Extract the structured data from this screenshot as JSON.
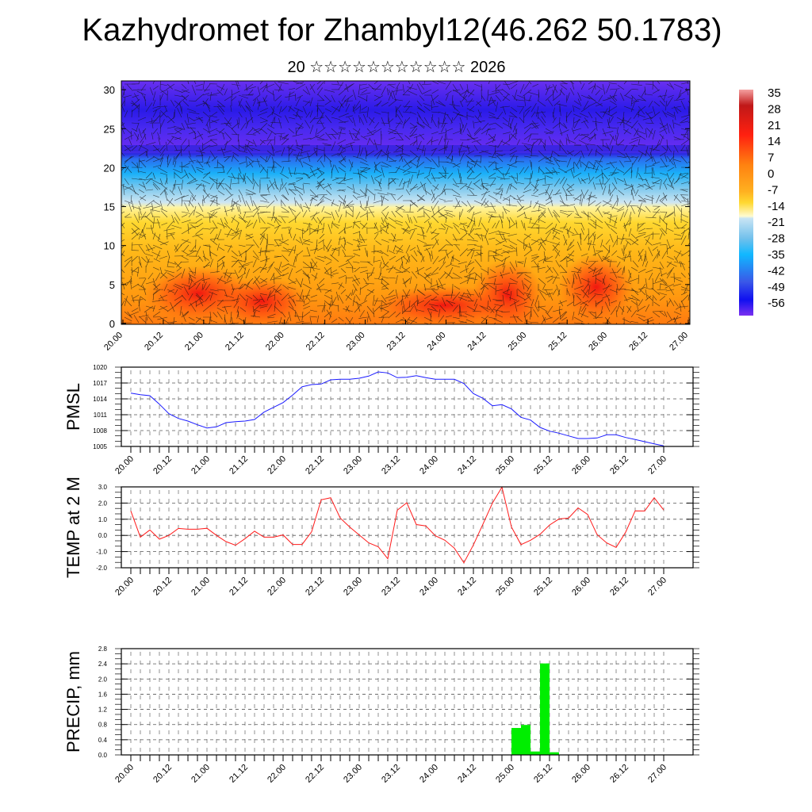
{
  "title": "Kazhydromet for Zhambyl12(46.262 50.1783)",
  "subtitle": "20 ☆☆☆☆☆☆☆☆☆☆☆ 2026",
  "colors": {
    "pmsl": "#1a1aff",
    "temp": "#ff1a1a",
    "precip": "#00ee00"
  },
  "chart_data": [
    {
      "type": "heatmap",
      "title": "Vertical cross-section: temperature with wind barbs",
      "ylim": [
        0,
        31
      ],
      "yticks": [
        "0",
        "5",
        "10",
        "15",
        "20",
        "25",
        "30"
      ],
      "xticks": [
        "20.00",
        "20.12",
        "21.00",
        "21.12",
        "22.00",
        "22.12",
        "23.00",
        "23.12",
        "24.00",
        "24.12",
        "25.00",
        "25.12",
        "26.00",
        "26.12",
        "27.00"
      ],
      "colorbar": [
        "35",
        "28",
        "21",
        "14",
        "7",
        "0",
        "-7",
        "-14",
        "-21",
        "-28",
        "-35",
        "-42",
        "-49",
        "-56"
      ]
    },
    {
      "type": "line",
      "ylabel": "PMSL",
      "ylim": [
        1005,
        1020
      ],
      "yticks": [
        "1005",
        "1008",
        "1011",
        "1014",
        "1017",
        "1020"
      ],
      "xticks": [
        "20.00",
        "20.12",
        "21.00",
        "21.12",
        "22.00",
        "22.12",
        "23.00",
        "23.12",
        "24.00",
        "24.12",
        "25.00",
        "25.12",
        "26.00",
        "26.12",
        "27.00"
      ],
      "step_hours": 3,
      "values": [
        1015.1,
        1014.8,
        1014.6,
        1013.0,
        1011.2,
        1010.3,
        1009.8,
        1009.1,
        1008.5,
        1008.7,
        1009.5,
        1009.7,
        1009.8,
        1010.1,
        1011.5,
        1012.4,
        1013.3,
        1014.7,
        1016.3,
        1016.7,
        1016.8,
        1017.6,
        1017.7,
        1017.7,
        1017.9,
        1018.3,
        1019.1,
        1018.9,
        1018.0,
        1018.1,
        1018.4,
        1018.0,
        1017.7,
        1017.7,
        1017.7,
        1016.9,
        1015.0,
        1014.1,
        1012.7,
        1012.9,
        1012.1,
        1010.5,
        1010.0,
        1008.6,
        1007.9,
        1007.5,
        1007.0,
        1006.5,
        1006.5,
        1006.6,
        1007.2,
        1007.2,
        1006.7,
        1006.3,
        1005.9,
        1005.5,
        1005.1
      ]
    },
    {
      "type": "line",
      "ylabel": "TEMP at 2 M",
      "ylim": [
        -2,
        3
      ],
      "yticks": [
        "-2.0",
        "-1.0",
        "0.0",
        "1.0",
        "2.0",
        "3.0"
      ],
      "xticks": [
        "20.00",
        "20.12",
        "21.00",
        "21.12",
        "22.00",
        "22.12",
        "23.00",
        "23.12",
        "24.00",
        "24.12",
        "25.00",
        "25.12",
        "26.00",
        "26.12",
        "27.00"
      ],
      "step_hours": 3,
      "values": [
        1.51,
        -0.11,
        0.34,
        -0.23,
        0.0,
        0.43,
        0.38,
        0.38,
        0.44,
        0.0,
        -0.38,
        -0.61,
        -0.2,
        0.26,
        -0.11,
        -0.11,
        0.03,
        -0.56,
        -0.56,
        0.23,
        2.2,
        2.33,
        1.08,
        0.52,
        0.03,
        -0.46,
        -0.7,
        -1.44,
        1.56,
        2.02,
        0.67,
        0.59,
        -0.02,
        -0.3,
        -0.79,
        -1.69,
        -0.59,
        0.69,
        2.0,
        2.98,
        0.52,
        -0.57,
        -0.3,
        0.07,
        0.64,
        1.02,
        1.07,
        1.7,
        1.3,
        0.05,
        -0.46,
        -0.74,
        0.2,
        1.52,
        1.51,
        2.33,
        1.57
      ]
    },
    {
      "type": "bar",
      "ylabel": "PRECIP, mm",
      "ylim": [
        0,
        2.8
      ],
      "yticks": [
        "0.0",
        "0.4",
        "0.8",
        "1.2",
        "1.6",
        "2.0",
        "2.4",
        "2.8"
      ],
      "xticks": [
        "20.00",
        "20.12",
        "21.00",
        "21.12",
        "22.00",
        "22.12",
        "23.00",
        "23.12",
        "24.00",
        "24.12",
        "25.00",
        "25.12",
        "26.00",
        "26.12",
        "27.00"
      ],
      "step_hours": 3,
      "values": [
        0,
        0,
        0,
        0,
        0,
        0,
        0,
        0,
        0,
        0,
        0,
        0,
        0,
        0,
        0,
        0,
        0,
        0,
        0,
        0,
        0,
        0,
        0,
        0,
        0,
        0,
        0,
        0,
        0,
        0,
        0,
        0,
        0,
        0,
        0,
        0,
        0,
        0,
        0,
        0,
        0.71,
        0.79,
        0.09,
        2.41,
        0.07,
        0,
        0,
        0,
        0,
        0,
        0,
        0,
        0,
        0,
        0,
        0
      ]
    }
  ]
}
